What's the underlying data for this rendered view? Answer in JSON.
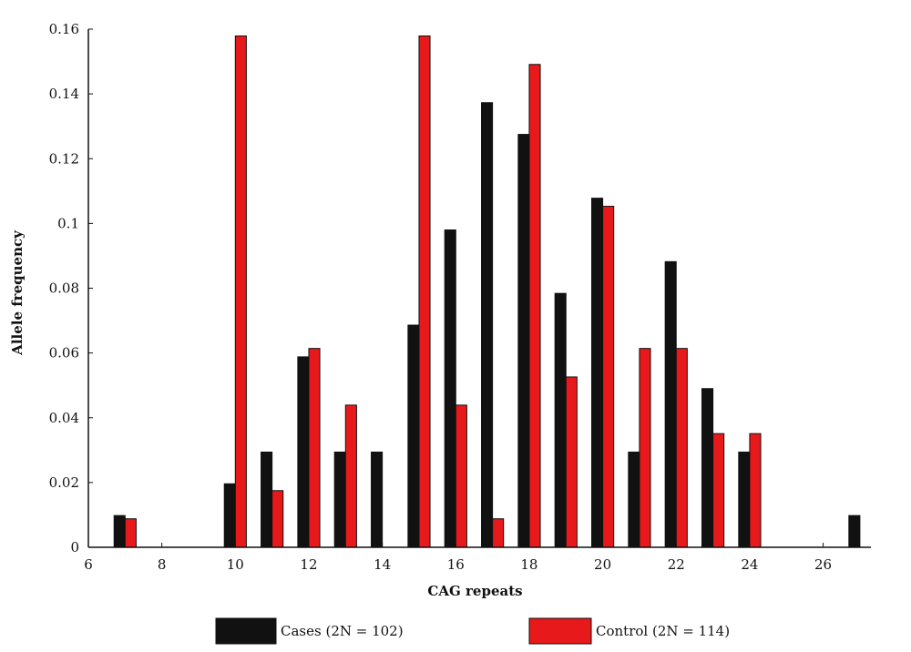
{
  "chart_data": {
    "type": "bar",
    "xlabel": "CAG repeats",
    "ylabel": "Allele frequency",
    "xlim": [
      6,
      27.3
    ],
    "ylim": [
      0,
      0.16
    ],
    "xticks": [
      6,
      8,
      10,
      12,
      14,
      16,
      18,
      20,
      22,
      24,
      26
    ],
    "xtick_labels": [
      "6",
      "8",
      "10",
      "12",
      "14",
      "16",
      "18",
      "20",
      "22",
      "24",
      "26"
    ],
    "yticks": [
      0,
      0.02,
      0.04,
      0.06,
      0.08,
      0.1,
      0.12,
      0.14,
      0.16
    ],
    "ytick_labels": [
      "0",
      "0.02",
      "0.04",
      "0.06",
      "0.08",
      "0.1",
      "0.12",
      "0.14",
      "0.16"
    ],
    "grid": false,
    "legend_position": "bottom",
    "series": [
      {
        "name": "Cases (2N = 102)",
        "color": "#111111",
        "points": [
          {
            "x": 7,
            "y": 0.0098
          },
          {
            "x": 10,
            "y": 0.0196
          },
          {
            "x": 11,
            "y": 0.0294
          },
          {
            "x": 12,
            "y": 0.0588
          },
          {
            "x": 13,
            "y": 0.0294
          },
          {
            "x": 14,
            "y": 0.0294
          },
          {
            "x": 15,
            "y": 0.0686
          },
          {
            "x": 16,
            "y": 0.098
          },
          {
            "x": 17,
            "y": 0.1373
          },
          {
            "x": 18,
            "y": 0.1275
          },
          {
            "x": 19,
            "y": 0.0784
          },
          {
            "x": 20,
            "y": 0.1078
          },
          {
            "x": 21,
            "y": 0.0294
          },
          {
            "x": 22,
            "y": 0.0882
          },
          {
            "x": 23,
            "y": 0.049
          },
          {
            "x": 24,
            "y": 0.0294
          },
          {
            "x": 27,
            "y": 0.0098
          }
        ]
      },
      {
        "name": "Control (2N = 114)",
        "color": "#e8191b",
        "points": [
          {
            "x": 7,
            "y": 0.0088
          },
          {
            "x": 10,
            "y": 0.1579
          },
          {
            "x": 11,
            "y": 0.0175
          },
          {
            "x": 12,
            "y": 0.0614
          },
          {
            "x": 13,
            "y": 0.0439
          },
          {
            "x": 15,
            "y": 0.1579
          },
          {
            "x": 16,
            "y": 0.0439
          },
          {
            "x": 17,
            "y": 0.0088
          },
          {
            "x": 18,
            "y": 0.1491
          },
          {
            "x": 19,
            "y": 0.0526
          },
          {
            "x": 20,
            "y": 0.1053
          },
          {
            "x": 21,
            "y": 0.0614
          },
          {
            "x": 22,
            "y": 0.0614
          },
          {
            "x": 23,
            "y": 0.0351
          },
          {
            "x": 24,
            "y": 0.0351
          }
        ]
      }
    ]
  }
}
